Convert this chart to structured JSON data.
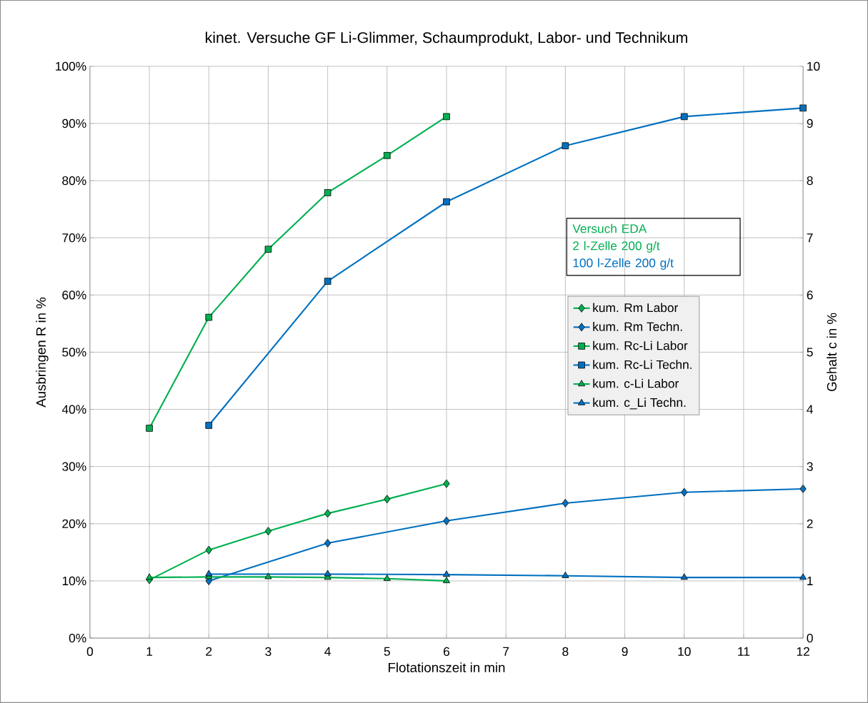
{
  "chart_data": {
    "type": "line",
    "title": "kinet. Versuche GF Li-Glimmer, Schaumprodukt,  Labor- und Technikum",
    "xlabel": "Flotationszeit in min",
    "ylabel": "Ausbringen   R  in %",
    "y2label": "Gehalt    c  in %",
    "xlim": [
      0,
      12
    ],
    "xticks": [
      0,
      1,
      2,
      3,
      4,
      5,
      6,
      7,
      8,
      9,
      10,
      11,
      12
    ],
    "ylim": [
      0,
      100
    ],
    "yticks": [
      {
        "value": 0,
        "label": "0%"
      },
      {
        "value": 10,
        "label": "10%"
      },
      {
        "value": 20,
        "label": "20%"
      },
      {
        "value": 30,
        "label": "30%"
      },
      {
        "value": 40,
        "label": "40%"
      },
      {
        "value": 50,
        "label": "50%"
      },
      {
        "value": 60,
        "label": "60%"
      },
      {
        "value": 70,
        "label": "70%"
      },
      {
        "value": 80,
        "label": "80%"
      },
      {
        "value": 90,
        "label": "90%"
      },
      {
        "value": 100,
        "label": "100%"
      }
    ],
    "y2lim": [
      0,
      10
    ],
    "y2ticks": [
      0,
      1,
      2,
      3,
      4,
      5,
      6,
      7,
      8,
      9,
      10
    ],
    "grid": true,
    "legend": "right",
    "line_style": "solid",
    "annotations": [
      "Versuch      EDA",
      "2 l-Zelle     200 g/t",
      "100 l-Zelle  200 g/t"
    ],
    "series": [
      {
        "name": "kum. Rm Labor",
        "color": "#00b050",
        "marker": "diamond",
        "x": [
          1,
          2,
          3,
          4,
          5,
          6
        ],
        "values": [
          10.2,
          15.4,
          18.7,
          21.8,
          24.3,
          27.0
        ]
      },
      {
        "name": "kum. Rm Techn.",
        "color": "#0070c0",
        "marker": "diamond",
        "x": [
          2,
          4,
          6,
          8,
          10,
          12
        ],
        "values": [
          10.0,
          16.6,
          20.5,
          23.6,
          25.5,
          26.1
        ]
      },
      {
        "name": "kum. Rc-Li Labor",
        "color": "#00b050",
        "marker": "square",
        "x": [
          1,
          2,
          3,
          4,
          5,
          6
        ],
        "values": [
          36.7,
          56.1,
          68.0,
          77.9,
          84.4,
          91.2
        ]
      },
      {
        "name": "kum. Rc-Li Techn.",
        "color": "#0070c0",
        "marker": "square",
        "x": [
          2,
          4,
          6,
          8,
          10,
          12
        ],
        "values": [
          37.2,
          62.4,
          76.3,
          86.1,
          91.2,
          92.7
        ]
      },
      {
        "name": "kum. c-Li Labor",
        "color": "#00b050",
        "marker": "triangle",
        "axis": "y2",
        "x": [
          1,
          2,
          3,
          4,
          5,
          6
        ],
        "values": [
          1.06,
          1.07,
          1.07,
          1.06,
          1.04,
          1.0
        ]
      },
      {
        "name": "kum. c_Li Techn.",
        "color": "#0070c0",
        "marker": "triangle",
        "axis": "y2",
        "x": [
          2,
          4,
          6,
          8,
          10,
          12
        ],
        "values": [
          1.12,
          1.12,
          1.11,
          1.09,
          1.06,
          1.06
        ]
      }
    ]
  }
}
